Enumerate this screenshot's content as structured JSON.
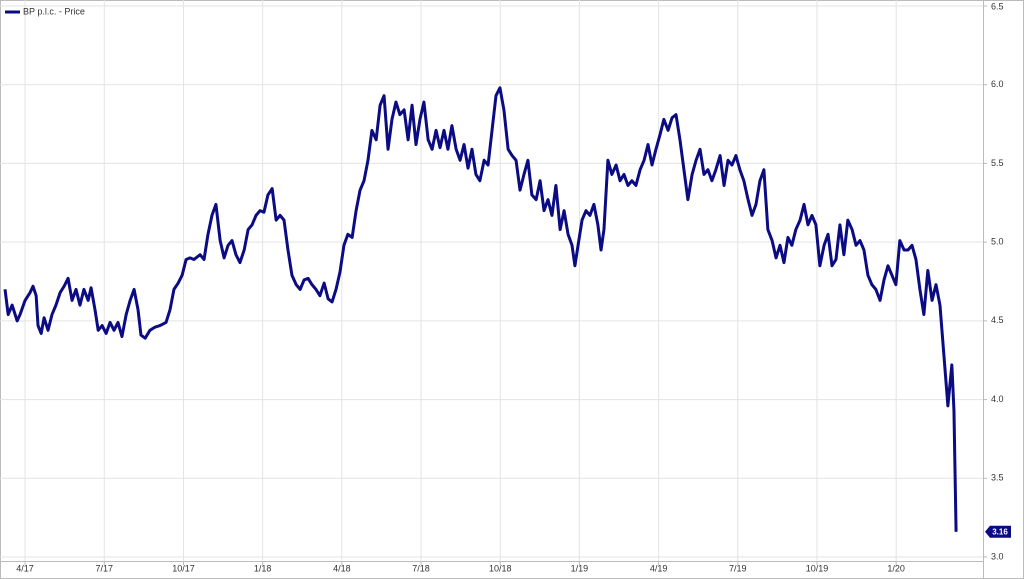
{
  "chart_data": {
    "type": "line",
    "legend": "top-left",
    "grid": true,
    "xlim": [
      -0.95,
      36.29
    ],
    "ylim": [
      3.0,
      6.5
    ],
    "yticks": [
      {
        "value": 3.0,
        "label": "3.0"
      },
      {
        "value": 3.5,
        "label": "3.5"
      },
      {
        "value": 4.0,
        "label": "4.0"
      },
      {
        "value": 4.5,
        "label": "4.5"
      },
      {
        "value": 5.0,
        "label": "5.0"
      },
      {
        "value": 5.5,
        "label": "5.5"
      },
      {
        "value": 6.0,
        "label": "6.0"
      },
      {
        "value": 6.5,
        "label": "6.5"
      }
    ],
    "xticks": [
      {
        "value": 0,
        "label": "4/17"
      },
      {
        "value": 3,
        "label": "7/17"
      },
      {
        "value": 6,
        "label": "10/17"
      },
      {
        "value": 9,
        "label": "1/18"
      },
      {
        "value": 12,
        "label": "4/18"
      },
      {
        "value": 15,
        "label": "7/18"
      },
      {
        "value": 18,
        "label": "10/18"
      },
      {
        "value": 21,
        "label": "1/19"
      },
      {
        "value": 24,
        "label": "4/19"
      },
      {
        "value": 27,
        "label": "7/19"
      },
      {
        "value": 30,
        "label": "10/19"
      },
      {
        "value": 33,
        "label": "1/20"
      }
    ],
    "x": [
      -0.76,
      -0.64,
      -0.49,
      -0.3,
      -0.19,
      0,
      0.19,
      0.3,
      0.42,
      0.49,
      0.61,
      0.72,
      0.87,
      1.02,
      1.17,
      1.33,
      1.48,
      1.63,
      1.78,
      1.93,
      2.08,
      2.23,
      2.39,
      2.5,
      2.65,
      2.77,
      2.92,
      3.07,
      3.22,
      3.37,
      3.52,
      3.67,
      3.83,
      3.98,
      4.13,
      4.28,
      4.39,
      4.55,
      4.73,
      4.92,
      5.11,
      5.34,
      5.49,
      5.64,
      5.8,
      5.95,
      6.1,
      6.25,
      6.4,
      6.63,
      6.78,
      6.93,
      7.08,
      7.23,
      7.39,
      7.54,
      7.69,
      7.84,
      7.99,
      8.14,
      8.3,
      8.45,
      8.6,
      8.75,
      8.9,
      9.05,
      9.2,
      9.36,
      9.51,
      9.66,
      9.81,
      9.96,
      10.11,
      10.27,
      10.42,
      10.57,
      10.72,
      10.87,
      11.02,
      11.17,
      11.33,
      11.48,
      11.63,
      11.78,
      11.93,
      12.08,
      12.23,
      12.39,
      12.54,
      12.69,
      12.84,
      12.99,
      13.14,
      13.3,
      13.45,
      13.6,
      13.75,
      13.9,
      14.05,
      14.2,
      14.36,
      14.51,
      14.66,
      14.81,
      14.96,
      15.11,
      15.27,
      15.42,
      15.57,
      15.72,
      15.87,
      16.02,
      16.17,
      16.33,
      16.48,
      16.63,
      16.78,
      16.93,
      17.08,
      17.23,
      17.39,
      17.54,
      17.69,
      17.84,
      17.99,
      18.14,
      18.3,
      18.45,
      18.6,
      18.75,
      18.9,
      19.05,
      19.2,
      19.36,
      19.51,
      19.66,
      19.81,
      19.96,
      20.11,
      20.27,
      20.42,
      20.57,
      20.72,
      20.83,
      20.95,
      21.1,
      21.25,
      21.4,
      21.55,
      21.7,
      21.82,
      21.93,
      22.08,
      22.23,
      22.39,
      22.54,
      22.69,
      22.84,
      22.99,
      23.14,
      23.3,
      23.45,
      23.6,
      23.75,
      23.9,
      24.05,
      24.2,
      24.36,
      24.51,
      24.66,
      24.81,
      24.96,
      25.11,
      25.27,
      25.42,
      25.57,
      25.72,
      25.87,
      26.02,
      26.17,
      26.33,
      26.48,
      26.63,
      26.78,
      26.93,
      27.08,
      27.23,
      27.39,
      27.54,
      27.69,
      27.84,
      27.99,
      28.14,
      28.3,
      28.45,
      28.6,
      28.75,
      28.9,
      29.05,
      29.2,
      29.36,
      29.51,
      29.66,
      29.81,
      29.96,
      30.11,
      30.27,
      30.42,
      30.57,
      30.72,
      30.87,
      31.02,
      31.17,
      31.33,
      31.48,
      31.63,
      31.78,
      31.93,
      32.08,
      32.23,
      32.39,
      32.54,
      32.69,
      32.84,
      32.99,
      33.14,
      33.3,
      33.45,
      33.6,
      33.75,
      33.9,
      34.05,
      34.2,
      34.36,
      34.51,
      34.66,
      34.81,
      34.96,
      35.11,
      35.19,
      35.27
    ],
    "series": [
      {
        "name": "BP p.l.c. - Price",
        "color": "#0b0b84",
        "values": [
          4.7,
          4.54,
          4.6,
          4.5,
          4.54,
          4.63,
          4.68,
          4.72,
          4.66,
          4.47,
          4.42,
          4.52,
          4.44,
          4.54,
          4.6,
          4.68,
          4.72,
          4.77,
          4.63,
          4.7,
          4.6,
          4.7,
          4.63,
          4.71,
          4.57,
          4.44,
          4.47,
          4.42,
          4.49,
          4.44,
          4.49,
          4.4,
          4.54,
          4.63,
          4.7,
          4.57,
          4.41,
          4.39,
          4.44,
          4.46,
          4.47,
          4.49,
          4.57,
          4.7,
          4.74,
          4.79,
          4.89,
          4.9,
          4.89,
          4.92,
          4.89,
          5.05,
          5.17,
          5.24,
          5.01,
          4.9,
          4.98,
          5.01,
          4.92,
          4.87,
          4.95,
          5.08,
          5.11,
          5.17,
          5.2,
          5.19,
          5.3,
          5.34,
          5.14,
          5.17,
          5.14,
          4.95,
          4.79,
          4.73,
          4.7,
          4.76,
          4.77,
          4.73,
          4.7,
          4.66,
          4.74,
          4.64,
          4.62,
          4.7,
          4.81,
          4.98,
          5.05,
          5.03,
          5.2,
          5.33,
          5.39,
          5.52,
          5.71,
          5.65,
          5.87,
          5.93,
          5.59,
          5.78,
          5.89,
          5.81,
          5.84,
          5.65,
          5.87,
          5.62,
          5.78,
          5.89,
          5.65,
          5.59,
          5.71,
          5.6,
          5.71,
          5.59,
          5.74,
          5.59,
          5.52,
          5.62,
          5.47,
          5.59,
          5.43,
          5.39,
          5.52,
          5.49,
          5.71,
          5.93,
          5.98,
          5.84,
          5.59,
          5.55,
          5.52,
          5.33,
          5.43,
          5.52,
          5.3,
          5.27,
          5.39,
          5.2,
          5.27,
          5.17,
          5.36,
          5.08,
          5.2,
          5.05,
          4.98,
          4.85,
          4.98,
          5.14,
          5.2,
          5.17,
          5.24,
          5.11,
          4.95,
          5.08,
          5.52,
          5.43,
          5.49,
          5.39,
          5.43,
          5.36,
          5.39,
          5.36,
          5.46,
          5.52,
          5.62,
          5.49,
          5.59,
          5.68,
          5.78,
          5.71,
          5.79,
          5.81,
          5.65,
          5.46,
          5.27,
          5.43,
          5.52,
          5.59,
          5.43,
          5.46,
          5.39,
          5.46,
          5.55,
          5.36,
          5.52,
          5.49,
          5.55,
          5.46,
          5.39,
          5.27,
          5.17,
          5.24,
          5.39,
          5.46,
          5.08,
          5.01,
          4.9,
          4.98,
          4.87,
          5.03,
          4.98,
          5.08,
          5.14,
          5.24,
          5.11,
          5.17,
          5.11,
          4.85,
          4.98,
          5.05,
          4.85,
          4.89,
          5.11,
          4.92,
          5.14,
          5.08,
          4.98,
          5.01,
          4.95,
          4.79,
          4.73,
          4.7,
          4.63,
          4.76,
          4.85,
          4.79,
          4.73,
          5.01,
          4.95,
          4.95,
          4.98,
          4.89,
          4.7,
          4.54,
          4.82,
          4.63,
          4.73,
          4.6,
          4.28,
          3.96,
          4.22,
          3.93,
          3.16
        ]
      }
    ]
  }
}
